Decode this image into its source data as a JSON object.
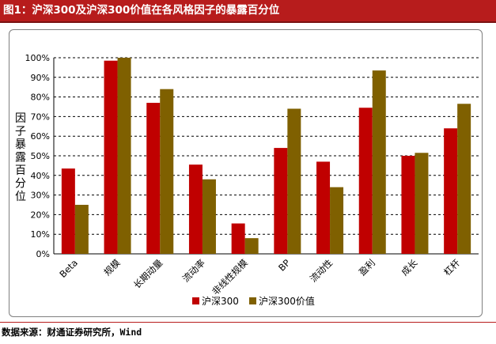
{
  "figure": {
    "title": "图1：沪深300及沪深300价值在各风格因子的暴露百分位",
    "source": "数据来源：财通证券研究所，Wind"
  },
  "chart_data": {
    "type": "bar",
    "title": "",
    "xlabel": "",
    "ylabel": "因子暴露百分位",
    "ylim": [
      0,
      100
    ],
    "y_tick_format": "percent",
    "y_ticks": [
      "0%",
      "10%",
      "20%",
      "30%",
      "40%",
      "50%",
      "60%",
      "70%",
      "80%",
      "90%",
      "100%"
    ],
    "grid": "horizontal-dashed",
    "legend_position": "bottom",
    "categories": [
      "Beta",
      "规模",
      "长期动量",
      "流动率",
      "非线性规模",
      "BP",
      "流动性",
      "盈利",
      "成长",
      "杠杆"
    ],
    "series": [
      {
        "name": "沪深300",
        "color": "#c00000",
        "values": [
          43.5,
          98.5,
          77,
          45.5,
          15.5,
          54,
          47,
          74.5,
          50,
          64
        ]
      },
      {
        "name": "沪深300价值",
        "color": "#7f6000",
        "values": [
          25,
          100,
          84,
          38,
          8,
          74,
          34,
          93.5,
          51.5,
          76.5
        ]
      }
    ]
  }
}
